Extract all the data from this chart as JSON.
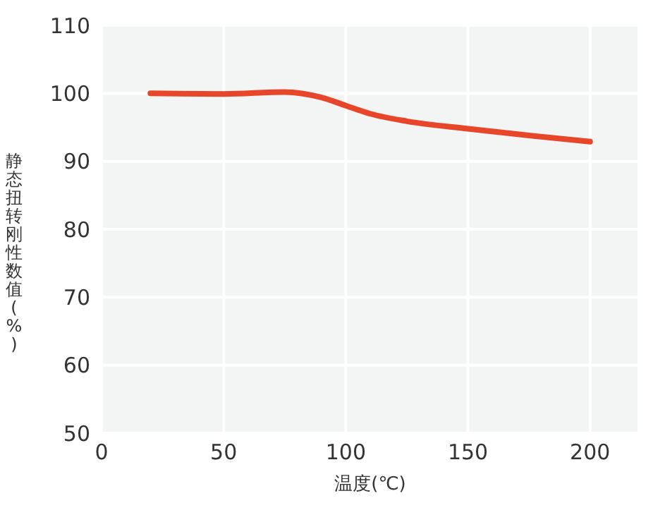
{
  "chart_data": {
    "type": "line",
    "xlabel": "温度(℃)",
    "ylabel": "静态扭转刚性数值(%)",
    "x": [
      20,
      50,
      75,
      90,
      100,
      110,
      125,
      150,
      175,
      200
    ],
    "series": [
      {
        "color": "#e8462a",
        "values": [
          100,
          99.9,
          100.2,
          99.4,
          98.2,
          97,
          95.9,
          94.8,
          93.8,
          92.9
        ]
      }
    ],
    "xlim": [
      0,
      220
    ],
    "xticks": [
      0,
      50,
      100,
      150,
      200
    ],
    "ylim": [
      50,
      110
    ],
    "yticks": [
      50,
      60,
      70,
      80,
      90,
      100,
      110
    ],
    "grid": true,
    "legend": false,
    "marker": "none",
    "line_style": "solid"
  }
}
